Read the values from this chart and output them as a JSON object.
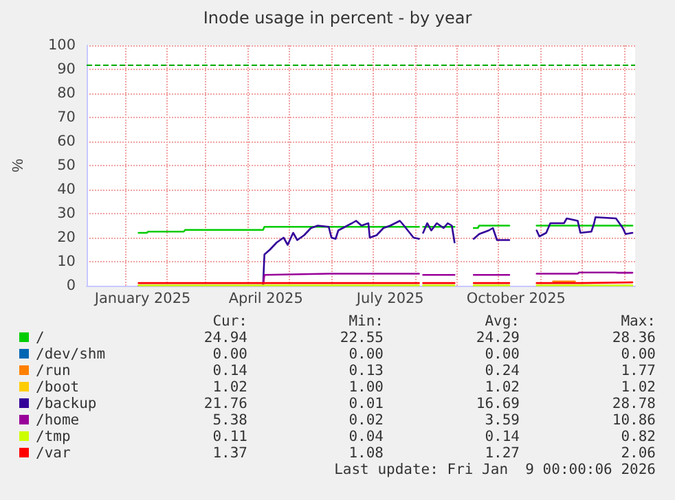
{
  "chart_data": {
    "type": "line",
    "title": "Inode usage in percent - by year",
    "ylabel": "%",
    "xlim": [
      "2024-12-04",
      "2026-01-09"
    ],
    "xticks": [
      {
        "value": "2025-01-01",
        "label": null
      },
      {
        "value": "2025-01-14",
        "label": "January 2025"
      },
      {
        "value": "2025-02-01",
        "label": null
      },
      {
        "value": "2025-03-01",
        "label": null
      },
      {
        "value": "2025-04-01",
        "label": null
      },
      {
        "value": "2025-04-14",
        "label": "April 2025"
      },
      {
        "value": "2025-05-01",
        "label": null
      },
      {
        "value": "2025-06-01",
        "label": null
      },
      {
        "value": "2025-07-01",
        "label": null
      },
      {
        "value": "2025-07-14",
        "label": "July 2025"
      },
      {
        "value": "2025-08-01",
        "label": null
      },
      {
        "value": "2025-09-01",
        "label": null
      },
      {
        "value": "2025-10-01",
        "label": null
      },
      {
        "value": "2025-10-14",
        "label": "October 2025"
      },
      {
        "value": "2025-11-01",
        "label": null
      },
      {
        "value": "2025-12-01",
        "label": null
      },
      {
        "value": "2026-01-01",
        "label": null
      }
    ],
    "ylim": [
      0,
      100
    ],
    "yticks": [
      0,
      10,
      20,
      30,
      40,
      50,
      60,
      70,
      80,
      90,
      100
    ],
    "grid": true,
    "legend": "bottom",
    "marker": "none",
    "line_style": "solid",
    "ref_lines": [
      {
        "axis": "y",
        "value": 92,
        "label": null,
        "color": "#00aa00",
        "line_style": "dashed"
      }
    ],
    "series": [
      {
        "name": "/",
        "color": "#00cc00",
        "x": [
          "2025-01-11",
          "2025-01-17",
          "2025-01-18",
          "2025-02-13",
          "2025-02-14",
          "2025-04-12",
          "2025-04-13",
          "2025-08-04",
          "2025-08-05",
          "2025-08-07",
          "2025-08-30",
          "2025-09-01",
          "2025-09-13",
          "2025-09-16",
          "2025-09-17",
          "2025-10-09",
          "2025-10-15",
          "2025-10-29",
          "2026-01-07"
        ],
        "values": [
          22,
          22,
          22.5,
          22.5,
          23.2,
          23.2,
          24.5,
          24.5,
          null,
          24.5,
          24.5,
          null,
          24,
          24,
          25,
          25,
          null,
          25,
          25
        ]
      },
      {
        "name": "/dev/shm",
        "color": "#0066b3"
      },
      {
        "name": "/run",
        "color": "#ff8000",
        "x": [
          "2025-11-10",
          "2025-11-26"
        ],
        "values": [
          1.8,
          1.8
        ]
      },
      {
        "name": "/boot",
        "color": "#ffcc00"
      },
      {
        "name": "/backup",
        "color": "#330099",
        "x": [
          "2025-04-12",
          "2025-04-13",
          "2025-04-17",
          "2025-04-22",
          "2025-04-27",
          "2025-04-30",
          "2025-05-04",
          "2025-05-07",
          "2025-05-12",
          "2025-05-17",
          "2025-05-22",
          "2025-05-30",
          "2025-06-01",
          "2025-06-04",
          "2025-06-06",
          "2025-06-16",
          "2025-06-19",
          "2025-06-23",
          "2025-06-28",
          "2025-06-29",
          "2025-07-04",
          "2025-07-09",
          "2025-07-14",
          "2025-07-21",
          "2025-07-24",
          "2025-07-31",
          "2025-08-04",
          "2025-08-05",
          "2025-08-07",
          "2025-08-10",
          "2025-08-13",
          "2025-08-17",
          "2025-08-22",
          "2025-08-25",
          "2025-08-28",
          "2025-08-30",
          "2025-09-01",
          "2025-09-13",
          "2025-09-17",
          "2025-09-24",
          "2025-09-27",
          "2025-09-30",
          "2025-10-09",
          "2025-10-15",
          "2025-10-29",
          "2025-10-31",
          "2025-11-05",
          "2025-11-08",
          "2025-11-18",
          "2025-11-20",
          "2025-11-28",
          "2025-11-30",
          "2025-12-08",
          "2025-12-10",
          "2025-12-11",
          "2025-12-26",
          "2025-12-31",
          "2026-01-02",
          "2026-01-07"
        ],
        "values": [
          0,
          13,
          15,
          18,
          20,
          17,
          22,
          19,
          21,
          24,
          25,
          24.5,
          20,
          19.5,
          23,
          26,
          27,
          25,
          26,
          20,
          21,
          24,
          25,
          27,
          25,
          20,
          19.5,
          null,
          22,
          26,
          23,
          26,
          24,
          26,
          25,
          18,
          null,
          19.5,
          21.5,
          23,
          24,
          19,
          19,
          null,
          23,
          20.5,
          22,
          26,
          26,
          28,
          27,
          22,
          22.5,
          26,
          28.5,
          28,
          24,
          21.5,
          22
        ]
      },
      {
        "name": "/home",
        "color": "#990099",
        "x": [
          "2025-01-11",
          "2025-04-12",
          "2025-04-13",
          "2025-05-30",
          "2025-08-04",
          "2025-08-05",
          "2025-08-07",
          "2025-08-30",
          "2025-09-01",
          "2025-09-13",
          "2025-10-09",
          "2025-10-15",
          "2025-10-29",
          "2025-11-28",
          "2025-11-29",
          "2025-12-26",
          "2025-12-27",
          "2026-01-07"
        ],
        "values": [
          0,
          0,
          4.5,
          5,
          5,
          null,
          4.5,
          4.5,
          null,
          4.5,
          4.5,
          null,
          5,
          5,
          5.5,
          5.5,
          5.4,
          5.4
        ]
      },
      {
        "name": "/tmp",
        "color": "#ccff00",
        "x": [
          "2025-01-11",
          "2025-08-04",
          "2025-08-05",
          "2025-08-07",
          "2025-08-30",
          "2025-09-01",
          "2025-09-13",
          "2025-10-09",
          "2025-10-15",
          "2025-10-29",
          "2026-01-07"
        ],
        "values": [
          0.1,
          0.1,
          null,
          0.1,
          0.1,
          null,
          0.1,
          0.1,
          null,
          0.1,
          0.1
        ]
      },
      {
        "name": "/var",
        "color": "#ff0000",
        "x": [
          "2025-01-11",
          "2025-08-04",
          "2025-08-05",
          "2025-08-07",
          "2025-08-30",
          "2025-09-01",
          "2025-09-13",
          "2025-10-09",
          "2025-10-15",
          "2025-10-29",
          "2025-11-30",
          "2026-01-07"
        ],
        "values": [
          1.1,
          1.1,
          null,
          1.1,
          1.1,
          null,
          1.1,
          1.1,
          null,
          1.1,
          1.1,
          1.4
        ]
      }
    ],
    "annotations": [
      "Cur:",
      "Min:",
      "Avg:",
      "Max:",
      "24.94",
      "22.55",
      "24.29",
      "28.36",
      "0.00",
      "0.00",
      "0.00",
      "0.00",
      "0.14",
      "0.13",
      "0.24",
      "1.77",
      "1.02",
      "1.00",
      "1.02",
      "1.02",
      "21.76",
      "0.01",
      "16.69",
      "28.78",
      "5.38",
      "0.02",
      "3.59",
      "10.86",
      "0.11",
      "0.04",
      "0.14",
      "0.82",
      "1.37",
      "1.08",
      "1.27",
      "2.06",
      "Last update: Fri Jan  9 00:00:06 2026"
    ]
  }
}
